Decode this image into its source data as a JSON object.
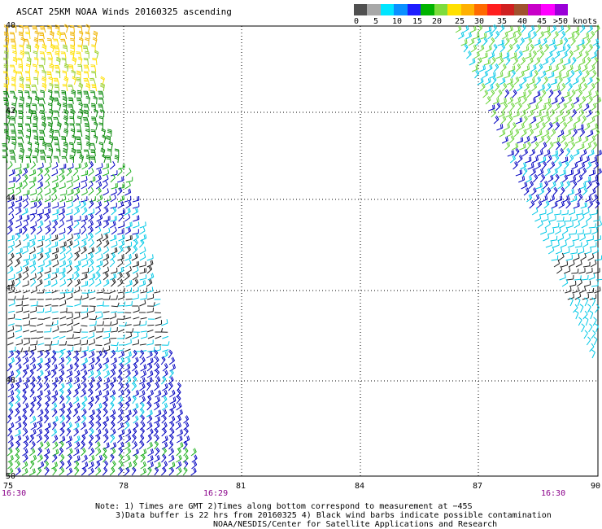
{
  "header": {
    "title": "ASCAT 25KM NOAA Winds 20160325 ascending"
  },
  "legend": {
    "labels": [
      "0",
      "5",
      "10",
      "15",
      "20",
      "25",
      "30",
      "35",
      "40",
      "45",
      ">50 knots"
    ],
    "colors": [
      "#505050",
      "#a8a8a8",
      "#00e5ff",
      "#0a90ff",
      "#1d1dff",
      "#00b300",
      "#7ddc3c",
      "#ffe000",
      "#ffb000",
      "#ff6a00",
      "#ff1e1e",
      "#d02020",
      "#a0522d",
      "#c800c8",
      "#ff00ff",
      "#9a00d8"
    ]
  },
  "map": {
    "lat_labels": [
      "40",
      "42",
      "44",
      "46",
      "48",
      "50"
    ],
    "lon_labels": [
      "75",
      "78",
      "81",
      "84",
      "87",
      "90"
    ],
    "lat_range": [
      40,
      50
    ],
    "lon_range": [
      75,
      90
    ],
    "grid": true,
    "time_labels": [
      "16:30",
      "16:29",
      "16:30"
    ]
  },
  "notes": {
    "line1": "Note: 1) Times are GMT 2)Times along bottom correspond to measurement at −45S",
    "line2": "3)Data buffer is 22 hrs from 20160325 4) Black wind barbs indicate possible contamination",
    "line3": "NOAA/NESDIS/Center for Satellite Applications and Research"
  }
}
